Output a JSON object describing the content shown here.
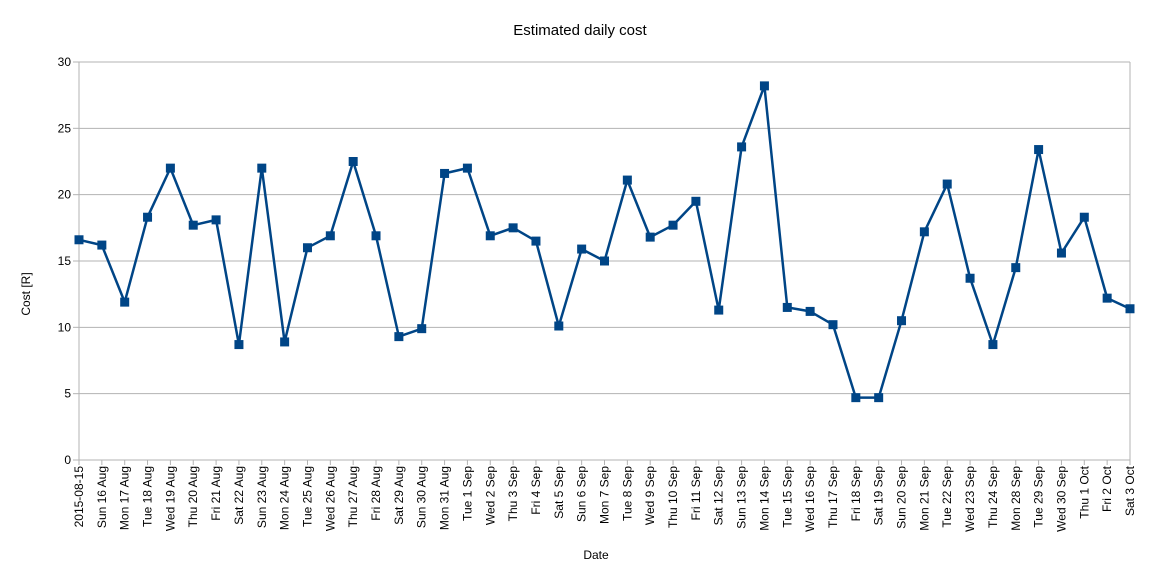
{
  "chart_data": {
    "type": "line",
    "title": "Estimated daily cost",
    "xlabel": "Date",
    "ylabel": "Cost [R]",
    "ylim": [
      0,
      30
    ],
    "yticks": [
      0,
      5,
      10,
      15,
      20,
      25,
      30
    ],
    "grid": true,
    "legend": "none",
    "series_color": "#004586",
    "categories": [
      "2015-08-15",
      "Sun 16 Aug",
      "Mon 17 Aug",
      "Tue 18 Aug",
      "Wed 19 Aug",
      "Thu 20 Aug",
      "Fri 21 Aug",
      "Sat 22 Aug",
      "Sun 23 Aug",
      "Mon 24 Aug",
      "Tue 25 Aug",
      "Wed 26 Aug",
      "Thu 27 Aug",
      "Fri 28 Aug",
      "Sat 29 Aug",
      "Sun 30 Aug",
      "Mon 31 Aug",
      "Tue 1 Sep",
      "Wed 2 Sep",
      "Thu 3 Sep",
      "Fri 4 Sep",
      "Sat 5 Sep",
      "Sun 6 Sep",
      "Mon 7 Sep",
      "Tue 8 Sep",
      "Wed 9 Sep",
      "Thu 10 Sep",
      "Fri 11 Sep",
      "Sat 12 Sep",
      "Sun 13 Sep",
      "Mon 14 Sep",
      "Tue 15 Sep",
      "Wed 16 Sep",
      "Thu 17 Sep",
      "Fri 18 Sep",
      "Sat 19 Sep",
      "Sun 20 Sep",
      "Mon 21 Sep",
      "Tue 22 Sep",
      "Wed 23 Sep",
      "Thu 24 Sep",
      "Mon 28 Sep",
      "Tue 29 Sep",
      "Wed 30 Sep",
      "Thu 1 Oct",
      "Fri 2 Oct",
      "Sat 3 Oct"
    ],
    "values": [
      16.6,
      16.2,
      11.9,
      18.3,
      22.0,
      17.7,
      18.1,
      8.7,
      22.0,
      8.9,
      16.0,
      16.9,
      22.5,
      16.9,
      9.3,
      9.9,
      21.6,
      22.0,
      16.9,
      17.5,
      16.5,
      10.1,
      15.9,
      15.0,
      21.1,
      16.8,
      17.7,
      19.5,
      11.3,
      23.6,
      28.2,
      11.5,
      11.2,
      10.2,
      4.7,
      4.7,
      10.5,
      17.2,
      20.8,
      13.7,
      8.7,
      14.5,
      23.4,
      15.6,
      18.3,
      12.2,
      11.4
    ]
  }
}
